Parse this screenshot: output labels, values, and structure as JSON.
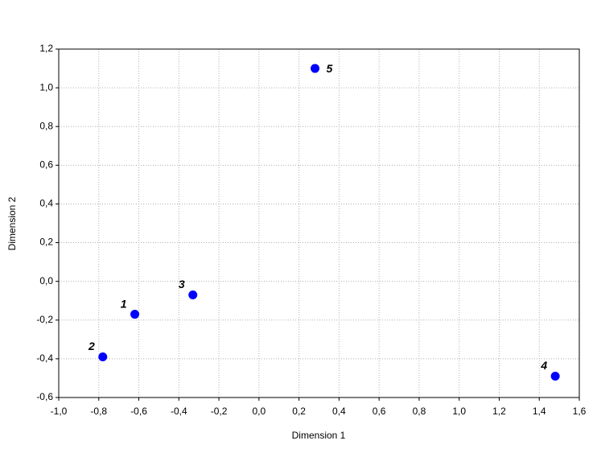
{
  "chart_data": {
    "type": "scatter",
    "x_label": "Dimension 1",
    "y_label": "Dimension 2",
    "x": [
      -0.62,
      -0.78,
      -0.33,
      1.48,
      0.28
    ],
    "values": [
      -0.17,
      -0.39,
      -0.07,
      -0.49,
      1.1
    ],
    "labels": [
      "1",
      "2",
      "3",
      "4",
      "5"
    ],
    "color": "#0000ff",
    "xlim": [
      -1.0,
      1.6
    ],
    "xticks": [
      {
        "value": -1.0,
        "label": "-1,0"
      },
      {
        "value": -0.8,
        "label": "-0,8"
      },
      {
        "value": -0.6,
        "label": "-0,6"
      },
      {
        "value": -0.4,
        "label": "-0,4"
      },
      {
        "value": -0.2,
        "label": "-0,2"
      },
      {
        "value": 0,
        "label": "0,0"
      },
      {
        "value": 0.2,
        "label": "0,2"
      },
      {
        "value": 0.4,
        "label": "0,4"
      },
      {
        "value": 0.6,
        "label": "0,6"
      },
      {
        "value": 0.8,
        "label": "0,8"
      },
      {
        "value": 1.0,
        "label": "1,0"
      },
      {
        "value": 1.2,
        "label": "1,2"
      },
      {
        "value": 1.4,
        "label": "1,4"
      },
      {
        "value": 1.6,
        "label": "1,6"
      }
    ],
    "ylim": [
      -0.6,
      1.2
    ],
    "yticks": [
      {
        "value": -0.6,
        "label": "-0,6"
      },
      {
        "value": -0.4,
        "label": "-0,4"
      },
      {
        "value": -0.2,
        "label": "-0,2"
      },
      {
        "value": 0,
        "label": "0,0"
      },
      {
        "value": 0.2,
        "label": "0,2"
      },
      {
        "value": 0.4,
        "label": "0,4"
      },
      {
        "value": 0.6,
        "label": "0,6"
      },
      {
        "value": 0.8,
        "label": "0,8"
      },
      {
        "value": 1.0,
        "label": "1,0"
      },
      {
        "value": 1.2,
        "label": "1,2"
      }
    ],
    "grid": true
  }
}
